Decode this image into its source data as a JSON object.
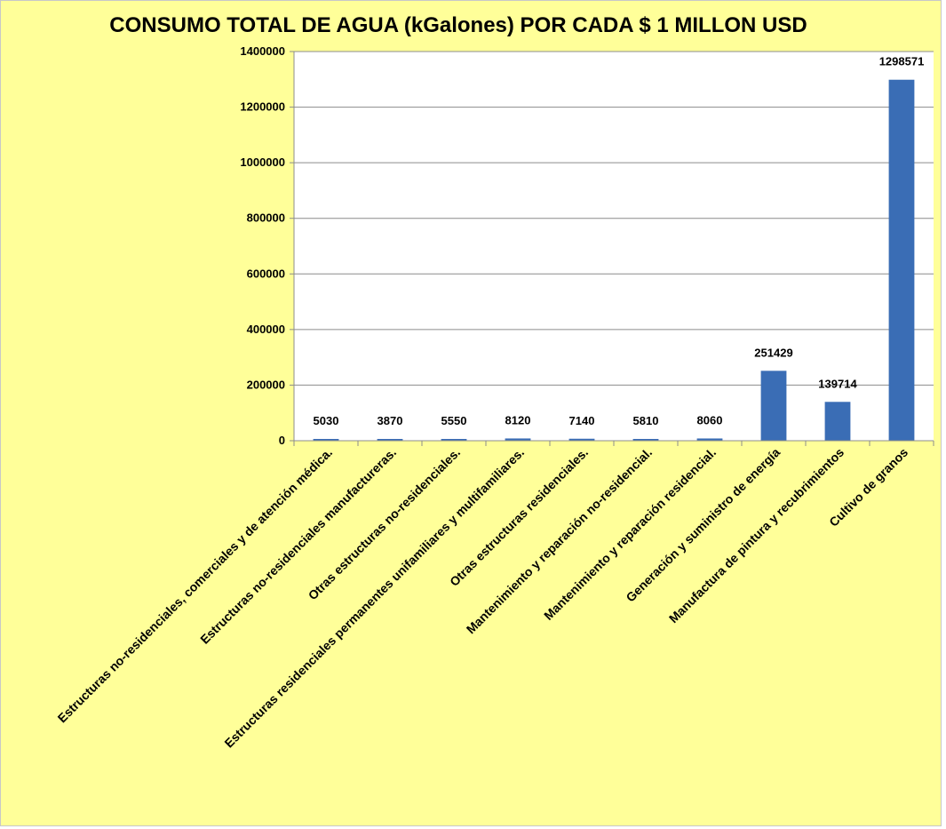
{
  "chart_data": {
    "type": "bar",
    "title": "CONSUMO TOTAL DE AGUA (kGalones) POR CADA $ 1 MILLON USD",
    "categories": [
      "Estructuras no-residenciales, comerciales y de atención médica.",
      "Estructuras no-residenciales manufactureras.",
      "Otras estructuras no-residenciales.",
      "Estructuras residenciales permanentes unifamiliares y multifamiliares.",
      "Otras estructuras residenciales.",
      "Mantenimiento y reparación no-residencial.",
      "Mantenimiento y reparación residencial.",
      "Generación y suministro de energía",
      "Manufactura de pintura y recubrimientos",
      "Cultivo de granos"
    ],
    "values": [
      5030,
      3870,
      5550,
      8120,
      7140,
      5810,
      8060,
      251429,
      139714,
      1298571
    ],
    "data_labels": [
      "5030",
      "3870",
      "5550",
      "8120",
      "7140",
      "5810",
      "8060",
      "251429",
      "139714",
      "1298571"
    ],
    "yticks": [
      "0",
      "200000",
      "400000",
      "600000",
      "800000",
      "1000000",
      "1200000",
      "1400000"
    ],
    "ylim": [
      0,
      1400000
    ],
    "grid": true,
    "legend": "none",
    "colors": {
      "bar": "#3a6db5",
      "background": "#ffff99",
      "plot_background": "#ffffff",
      "grid": "#8c8c8c"
    }
  }
}
